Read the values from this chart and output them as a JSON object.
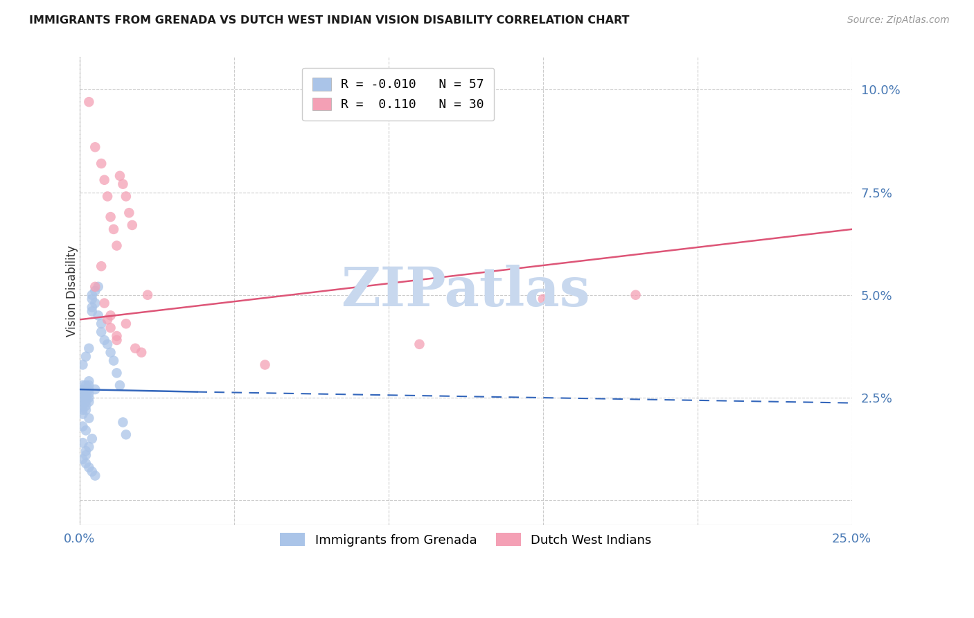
{
  "title": "IMMIGRANTS FROM GRENADA VS DUTCH WEST INDIAN VISION DISABILITY CORRELATION CHART",
  "source": "Source: ZipAtlas.com",
  "ylabel": "Vision Disability",
  "yticks": [
    0.0,
    0.025,
    0.05,
    0.075,
    0.1
  ],
  "ytick_labels": [
    "",
    "2.5%",
    "5.0%",
    "7.5%",
    "10.0%"
  ],
  "xlim": [
    0.0,
    0.25
  ],
  "ylim": [
    -0.006,
    0.108
  ],
  "watermark": "ZIPatlas",
  "blue_scatter_x": [
    0.001,
    0.001,
    0.001,
    0.001,
    0.001,
    0.001,
    0.001,
    0.001,
    0.002,
    0.002,
    0.002,
    0.002,
    0.002,
    0.002,
    0.002,
    0.003,
    0.003,
    0.003,
    0.003,
    0.003,
    0.003,
    0.004,
    0.004,
    0.004,
    0.004,
    0.005,
    0.005,
    0.005,
    0.006,
    0.006,
    0.007,
    0.007,
    0.008,
    0.009,
    0.01,
    0.011,
    0.012,
    0.013,
    0.014,
    0.015,
    0.001,
    0.002,
    0.003,
    0.004,
    0.005,
    0.001,
    0.002,
    0.002,
    0.003,
    0.004,
    0.001,
    0.002,
    0.003,
    0.001,
    0.002,
    0.003
  ],
  "blue_scatter_y": [
    0.026,
    0.025,
    0.024,
    0.023,
    0.022,
    0.021,
    0.027,
    0.028,
    0.027,
    0.026,
    0.025,
    0.024,
    0.023,
    0.022,
    0.028,
    0.027,
    0.026,
    0.025,
    0.024,
    0.028,
    0.029,
    0.049,
    0.05,
    0.047,
    0.046,
    0.051,
    0.048,
    0.027,
    0.052,
    0.045,
    0.043,
    0.041,
    0.039,
    0.038,
    0.036,
    0.034,
    0.031,
    0.028,
    0.019,
    0.016,
    0.01,
    0.009,
    0.008,
    0.007,
    0.006,
    0.014,
    0.012,
    0.011,
    0.013,
    0.015,
    0.018,
    0.017,
    0.02,
    0.033,
    0.035,
    0.037
  ],
  "pink_scatter_x": [
    0.003,
    0.005,
    0.007,
    0.008,
    0.009,
    0.01,
    0.011,
    0.012,
    0.013,
    0.014,
    0.015,
    0.016,
    0.017,
    0.005,
    0.007,
    0.009,
    0.01,
    0.012,
    0.015,
    0.018,
    0.02,
    0.022,
    0.008,
    0.01,
    0.012,
    0.15,
    0.18,
    0.06,
    0.11
  ],
  "pink_scatter_y": [
    0.097,
    0.086,
    0.082,
    0.078,
    0.074,
    0.069,
    0.066,
    0.062,
    0.079,
    0.077,
    0.074,
    0.07,
    0.067,
    0.052,
    0.057,
    0.044,
    0.042,
    0.039,
    0.043,
    0.037,
    0.036,
    0.05,
    0.048,
    0.045,
    0.04,
    0.049,
    0.05,
    0.033,
    0.038
  ],
  "blue_solid_line_x": [
    0.0,
    0.038
  ],
  "blue_solid_line_y": [
    0.027,
    0.0264
  ],
  "blue_dash_line_x": [
    0.038,
    0.25
  ],
  "blue_dash_line_y": [
    0.0264,
    0.0237
  ],
  "pink_line_x": [
    0.0,
    0.25
  ],
  "pink_line_y": [
    0.044,
    0.066
  ],
  "background_color": "#ffffff",
  "title_color": "#1a1a1a",
  "axis_label_color": "#4a7ab5",
  "tick_color": "#4a7ab5",
  "grid_color": "#cccccc",
  "scatter_blue_color": "#aac4e8",
  "scatter_pink_color": "#f4a0b5",
  "line_blue_color": "#3366bb",
  "line_pink_color": "#dd5577",
  "watermark_color": "#c8d8ee"
}
